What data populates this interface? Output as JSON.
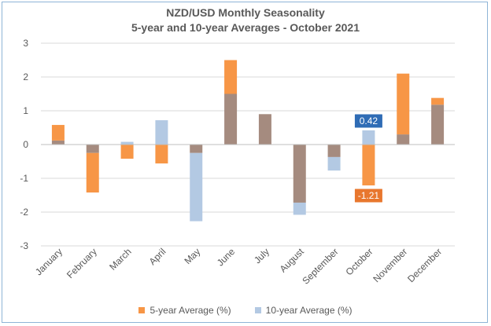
{
  "chart_data": {
    "type": "bar",
    "title": "NZD/USD Monthly Seasonality",
    "subtitle": "5-year and 10-year Averages - October 2021",
    "categories": [
      "January",
      "February",
      "March",
      "April",
      "May",
      "June",
      "July",
      "August",
      "September",
      "October",
      "November",
      "December"
    ],
    "series": [
      {
        "name": "5-year Average (%)",
        "color": "#f79646",
        "values": [
          0.58,
          -1.42,
          -0.42,
          -0.56,
          -0.25,
          2.5,
          0.9,
          -1.72,
          -0.37,
          -1.21,
          2.1,
          1.38
        ]
      },
      {
        "name": "10-year Average (%)",
        "color": "#b3c9e3",
        "values": [
          0.12,
          -0.25,
          0.08,
          0.72,
          -2.27,
          1.5,
          0.9,
          -2.08,
          -0.77,
          0.42,
          0.3,
          1.18
        ]
      }
    ],
    "overlap_color": "#a58b7f",
    "ylim": [
      -3,
      3
    ],
    "yticks": [
      3,
      2,
      1,
      0,
      -1,
      -2,
      -3
    ],
    "grid": true,
    "legend_position": "bottom",
    "annotations": [
      {
        "category": "October",
        "series": "10-year Average (%)",
        "text": "0.42",
        "color": "#2f6cb5"
      },
      {
        "category": "October",
        "series": "5-year Average (%)",
        "text": "-1.21",
        "color": "#e8772e"
      }
    ]
  }
}
